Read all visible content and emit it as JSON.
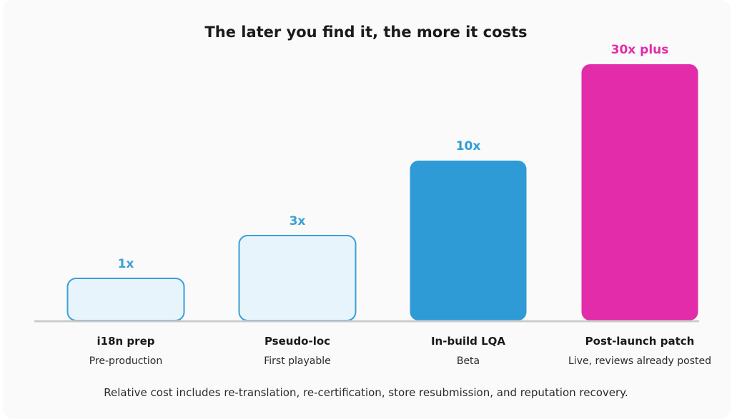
{
  "chart_data": {
    "type": "bar",
    "title": "The later you find it, the more it costs",
    "categories": [
      "i18n prep",
      "Pseudo-loc",
      "In-build LQA",
      "Post-launch patch"
    ],
    "subcategories": [
      "Pre-production",
      "First playable",
      "Beta",
      "Live, reviews already posted"
    ],
    "values": [
      1,
      3,
      10,
      30
    ],
    "value_labels": [
      "1x",
      "3x",
      "10x",
      "30x plus"
    ],
    "ylim": [
      0,
      30
    ],
    "grid": false,
    "legend": "none",
    "footnote": "Relative cost includes re-translation, re-certification, store resubmission, and reputation recovery.",
    "colors": {
      "light_fill": "#e8f4fc",
      "light_stroke": "#3aa0d6",
      "blue": "#2f9bd6",
      "magenta": "#e22ca9",
      "baseline": "#cccccc"
    }
  }
}
